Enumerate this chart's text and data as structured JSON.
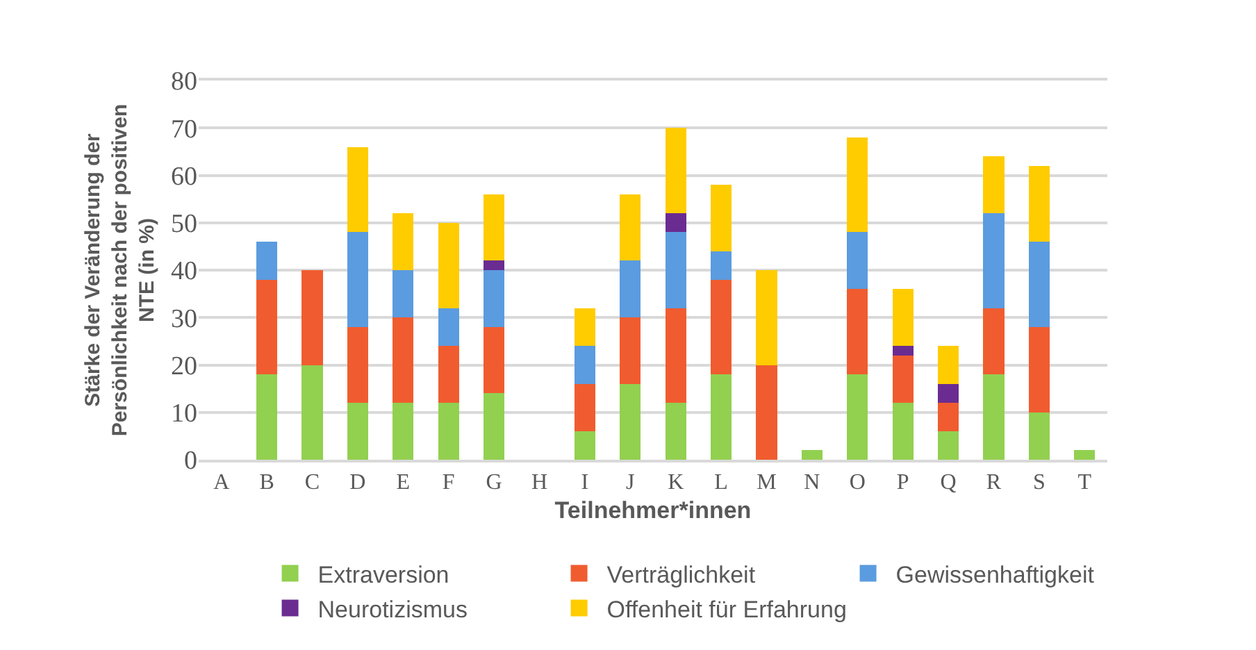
{
  "chart_data": {
    "type": "bar",
    "stacked": true,
    "xlabel": "Teilnehmer*innen",
    "ylabel": "Stärke der Veränderung der Persönlichkeit nach der positiven NTE (in %)",
    "categories": [
      "A",
      "B",
      "C",
      "D",
      "E",
      "F",
      "G",
      "H",
      "I",
      "J",
      "K",
      "L",
      "M",
      "N",
      "O",
      "P",
      "Q",
      "R",
      "S",
      "T"
    ],
    "series": [
      {
        "name": "Extraversion",
        "color": "#92d050",
        "values": [
          null,
          18,
          20,
          12,
          12,
          12,
          14,
          null,
          6,
          16,
          12,
          18,
          null,
          2,
          18,
          12,
          6,
          18,
          10,
          2
        ]
      },
      {
        "name": "Verträglichkeit",
        "color": "#f05c2f",
        "values": [
          null,
          20,
          20,
          16,
          18,
          12,
          14,
          null,
          10,
          14,
          20,
          20,
          20,
          null,
          18,
          10,
          6,
          14,
          18,
          null
        ]
      },
      {
        "name": "Gewissenhaftigkeit",
        "color": "#5b9bdf",
        "values": [
          null,
          8,
          null,
          20,
          10,
          8,
          12,
          null,
          8,
          12,
          16,
          6,
          null,
          null,
          12,
          null,
          null,
          20,
          18,
          null
        ]
      },
      {
        "name": "Neurotizismus",
        "color": "#6a2c91",
        "values": [
          null,
          null,
          null,
          null,
          null,
          null,
          2,
          null,
          null,
          null,
          4,
          null,
          null,
          null,
          null,
          2,
          4,
          null,
          null,
          null
        ]
      },
      {
        "name": "Offenheit für Erfahrung",
        "color": "#ffcc00",
        "values": [
          null,
          null,
          null,
          18,
          12,
          18,
          14,
          null,
          8,
          14,
          18,
          14,
          20,
          null,
          20,
          12,
          8,
          12,
          16,
          null
        ]
      }
    ],
    "ylim": [
      0,
      80
    ],
    "yticks": [
      0,
      10,
      20,
      30,
      40,
      50,
      60,
      70,
      80
    ],
    "grid": "y",
    "legend": "bottom"
  }
}
